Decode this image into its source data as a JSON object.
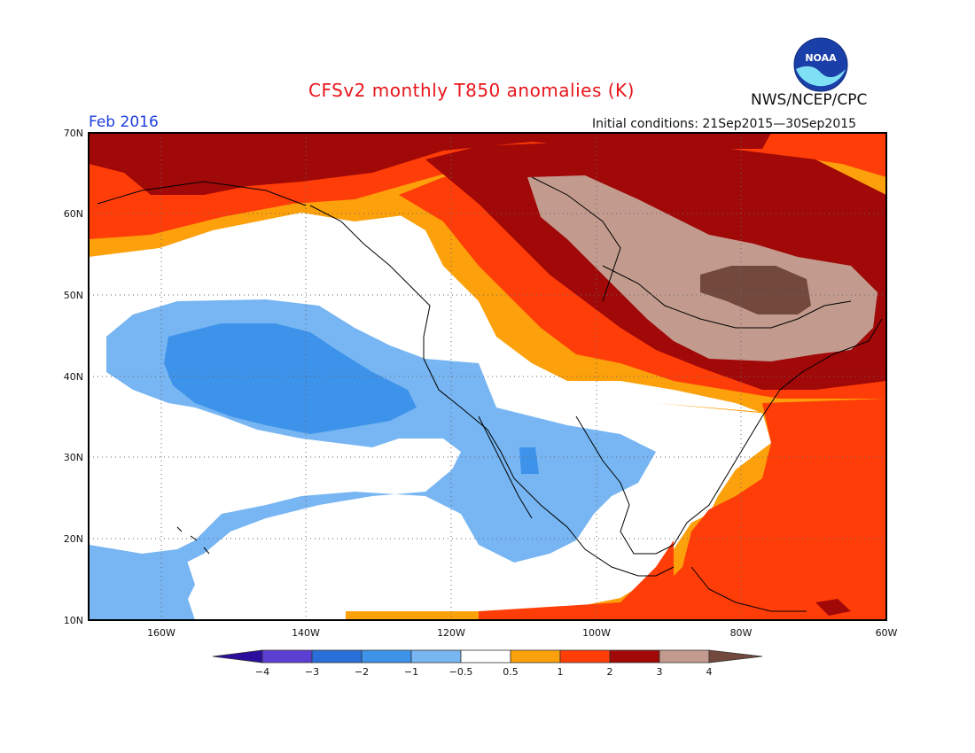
{
  "title": "CFSv2 monthly T850 anomalies (K)",
  "agency": "NWS/NCEP/CPC",
  "logo_text": "NOAA",
  "period": "Feb 2016",
  "initial_conditions": "Initial conditions: 21Sep2015—30Sep2015",
  "lat_labels": [
    "70N",
    "60N",
    "50N",
    "40N",
    "30N",
    "20N",
    "10N"
  ],
  "lon_labels": [
    "160W",
    "140W",
    "120W",
    "100W",
    "80W",
    "60W"
  ],
  "colorbar": {
    "labels": [
      "−4",
      "−3",
      "−2",
      "−1",
      "−0.5",
      "0.5",
      "1",
      "2",
      "3",
      "4"
    ],
    "colors": [
      "#2c0e9c",
      "#5b3fd3",
      "#2a6fd9",
      "#3d92ea",
      "#77b6f2",
      "#ffffff",
      "#fca00b",
      "#ff3d08",
      "#a10808",
      "#c29b8e",
      "#74493d"
    ]
  },
  "map_extent": {
    "lon": [
      -170,
      -60
    ],
    "lat": [
      10,
      70
    ]
  },
  "anomaly_colors": {
    "b1": "#77b6f2",
    "b2": "#3d92ea",
    "b3": "#2a6fd9",
    "w": "#ffffff",
    "o": "#fca00b",
    "r": "#ff3d08",
    "dr": "#a10808",
    "t": "#c29b8e",
    "br": "#74493d"
  }
}
